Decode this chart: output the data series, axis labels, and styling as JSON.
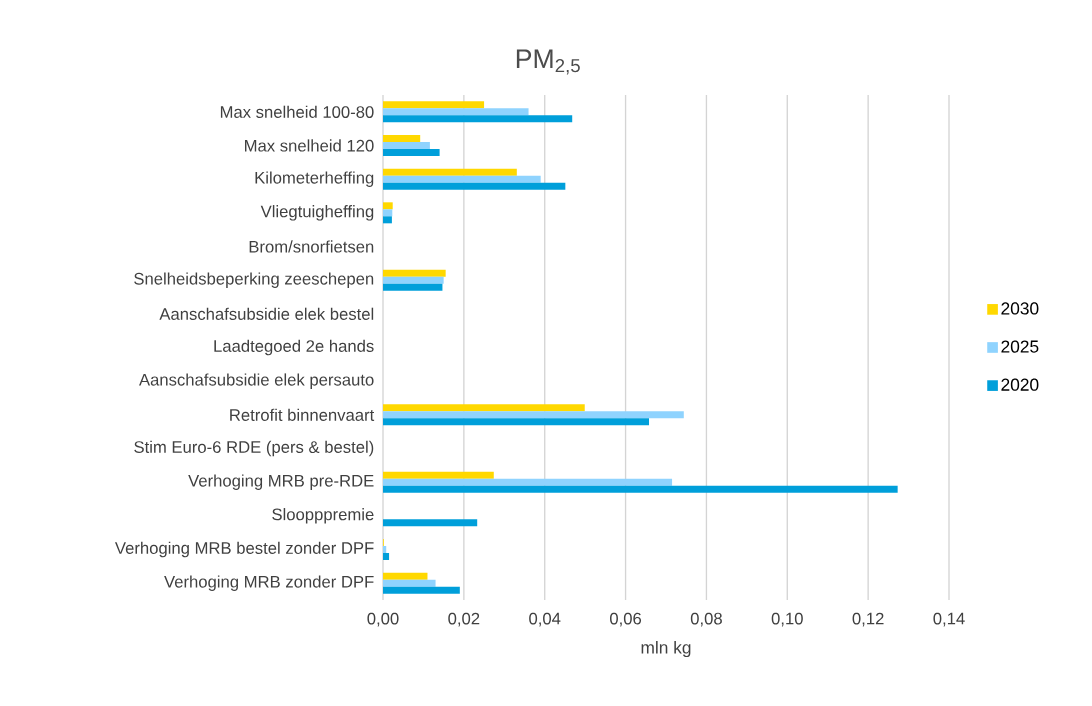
{
  "chart_data": {
    "type": "bar",
    "orientation": "horizontal",
    "title": "PM$_{2,5}$",
    "xlabel": "mln kg",
    "categories": [
      "Max snelheid 100-80",
      "Max snelheid 120",
      "Kilometerheffing",
      "Vliegtuigheffing",
      "Brom/snorfietsen",
      "Snelheidsbeperking zeeschepen",
      "Aanschafsubsidie elek bestel",
      "Laadtegoed 2e hands",
      "Aanschafsubsidie elek persauto",
      "Retrofit binnenvaart",
      "Stim Euro-6 RDE (pers & bestel)",
      "Verhoging MRB pre-RDE",
      "Sloopppremie",
      "Verhoging MRB bestel zonder DPF",
      "Verhoging MRB zonder DPF"
    ],
    "series": [
      {
        "name": "2030",
        "color": "#ffd800",
        "values": [
          0.025,
          0.0092,
          0.0331,
          0.0024,
          0,
          0.0155,
          0,
          0,
          0,
          0.0499,
          0,
          0.0274,
          0,
          0.0002,
          0.011
        ]
      },
      {
        "name": "2025",
        "color": "#8fd3fe",
        "values": [
          0.036,
          0.0116,
          0.039,
          0.0023,
          0,
          0.015,
          0,
          0,
          0,
          0.0744,
          0,
          0.0715,
          0,
          0.0008,
          0.013
        ]
      },
      {
        "name": "2020",
        "color": "#009fda",
        "values": [
          0.0468,
          0.014,
          0.0451,
          0.0022,
          0,
          0.0147,
          0,
          0,
          0,
          0.0658,
          0,
          0.1273,
          0.0233,
          0.0015,
          0.019
        ]
      }
    ],
    "xlim": [
      0,
      0.14
    ],
    "xticks": [
      {
        "value": 0,
        "label": "0,00"
      },
      {
        "value": 0.02,
        "label": "0,02"
      },
      {
        "value": 0.04,
        "label": "0,04"
      },
      {
        "value": 0.06,
        "label": "0,06"
      },
      {
        "value": 0.08,
        "label": "0,08"
      },
      {
        "value": 0.1,
        "label": "0,10"
      },
      {
        "value": 0.12,
        "label": "0,12"
      },
      {
        "value": 0.14,
        "label": "0,14"
      }
    ],
    "grid": "x",
    "legend": "right"
  }
}
